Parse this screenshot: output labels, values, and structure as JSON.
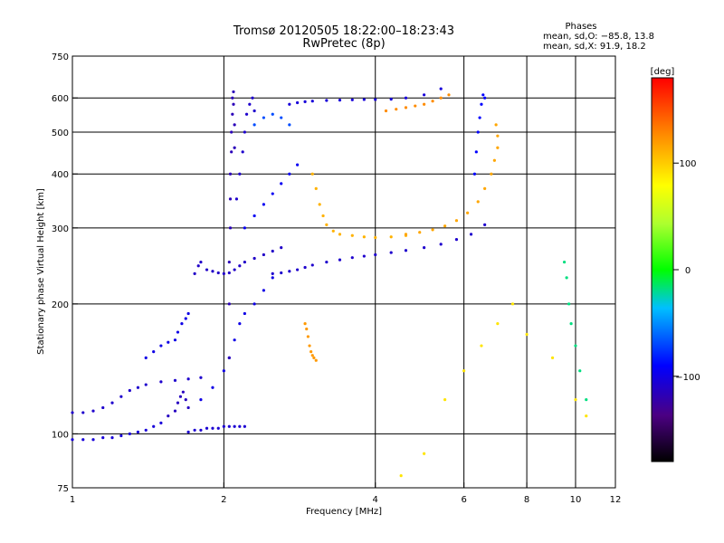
{
  "header": {
    "title_line1": "Tromsø 20120505 18:22:00–18:23:43",
    "title_line2": "RwPretec (8p)",
    "phases_title": "Phases",
    "phases_line1": "mean, sd,O: −85.8, 13.8",
    "phases_line2": "mean, sd,X:  91.9, 18.2"
  },
  "colorbar": {
    "label": "[deg]",
    "ticks": [
      {
        "value": 100,
        "label": "100"
      },
      {
        "value": 0,
        "label": "0"
      },
      {
        "value": -100,
        "label": "−100"
      }
    ],
    "range": [
      -180,
      180
    ]
  },
  "chart_data": {
    "type": "scatter",
    "title": "Tromsø 20120505 18:22:00–18:23:43",
    "subtitle": "RwPretec (8p)",
    "xlabel": "Frequency [MHz]",
    "ylabel": "Stationary phase Virtual Height [km]",
    "x_scale": "log",
    "y_scale": "log",
    "xlim": [
      1,
      12
    ],
    "ylim": [
      75,
      750
    ],
    "x_ticks": [
      {
        "value": 1,
        "label": "1"
      },
      {
        "value": 2,
        "label": "2"
      },
      {
        "value": 4,
        "label": "4"
      },
      {
        "value": 6,
        "label": "6"
      },
      {
        "value": 8,
        "label": "8"
      },
      {
        "value": 10,
        "label": "10"
      },
      {
        "value": 12,
        "label": "12"
      }
    ],
    "y_ticks": [
      {
        "value": 75,
        "label": "75"
      },
      {
        "value": 100,
        "label": "100"
      },
      {
        "value": 200,
        "label": "200"
      },
      {
        "value": 300,
        "label": "300"
      },
      {
        "value": 400,
        "label": "400"
      },
      {
        "value": 500,
        "label": "500"
      },
      {
        "value": 600,
        "label": "600"
      },
      {
        "value": 750,
        "label": "750"
      }
    ],
    "grid": true,
    "x_grid": [
      2,
      4,
      6,
      8,
      10
    ],
    "y_grid": [
      100,
      200,
      300,
      400,
      500,
      600
    ],
    "color_by": "phase_deg",
    "series": [
      {
        "phase": -110,
        "x": [
          1.0,
          1.05,
          1.1,
          1.15,
          1.2,
          1.25,
          1.3,
          1.35,
          1.4,
          1.5,
          1.6,
          1.7,
          1.8
        ],
        "y": [
          112,
          112,
          113,
          115,
          118,
          122,
          126,
          128,
          130,
          132,
          133,
          134,
          135
        ]
      },
      {
        "phase": -105,
        "x": [
          1.0,
          1.05,
          1.1,
          1.15,
          1.2,
          1.25,
          1.3,
          1.35,
          1.4,
          1.45,
          1.5
        ],
        "y": [
          97,
          97,
          97,
          98,
          98,
          99,
          100,
          101,
          102,
          104,
          106
        ]
      },
      {
        "phase": -100,
        "x": [
          1.4,
          1.45,
          1.5,
          1.55,
          1.6,
          1.62,
          1.65,
          1.68,
          1.7
        ],
        "y": [
          150,
          155,
          160,
          163,
          165,
          172,
          180,
          185,
          190
        ]
      },
      {
        "phase": -115,
        "x": [
          1.55,
          1.6,
          1.62,
          1.64,
          1.66,
          1.68,
          1.7
        ],
        "y": [
          110,
          113,
          118,
          122,
          125,
          120,
          115
        ]
      },
      {
        "phase": -108,
        "x": [
          1.7,
          1.75,
          1.8,
          1.85,
          1.9,
          1.95,
          2.0,
          2.05,
          2.1,
          2.15,
          2.2
        ],
        "y": [
          101,
          102,
          102,
          103,
          103,
          103,
          104,
          104,
          104,
          104,
          104
        ]
      },
      {
        "phase": -112,
        "x": [
          1.75,
          1.78,
          1.8,
          1.85,
          1.9,
          1.95,
          2.0,
          2.05,
          2.1,
          2.15,
          2.2,
          2.3,
          2.4,
          2.5,
          2.6
        ],
        "y": [
          235,
          245,
          250,
          240,
          238,
          236,
          235,
          236,
          240,
          245,
          250,
          255,
          260,
          265,
          270
        ]
      },
      {
        "phase": -100,
        "x": [
          1.8,
          1.9,
          2.0,
          2.05,
          2.1,
          2.15,
          2.2,
          2.3,
          2.4,
          2.5
        ],
        "y": [
          120,
          128,
          140,
          150,
          165,
          180,
          190,
          200,
          215,
          230
        ]
      },
      {
        "phase": -118,
        "x": [
          2.05,
          2.05,
          2.05,
          2.06,
          2.06,
          2.06,
          2.07,
          2.07,
          2.08,
          2.08,
          2.09,
          2.09,
          2.1,
          2.1
        ],
        "y": [
          150,
          200,
          250,
          300,
          350,
          400,
          450,
          500,
          550,
          600,
          620,
          580,
          520,
          460
        ]
      },
      {
        "phase": -110,
        "x": [
          2.12,
          2.15,
          2.18,
          2.2,
          2.22,
          2.25,
          2.28,
          2.3
        ],
        "y": [
          350,
          400,
          450,
          500,
          550,
          580,
          600,
          560
        ]
      },
      {
        "phase": -95,
        "x": [
          2.2,
          2.3,
          2.4,
          2.5,
          2.6,
          2.7,
          2.8
        ],
        "y": [
          300,
          320,
          340,
          360,
          380,
          400,
          420
        ]
      },
      {
        "phase": -70,
        "x": [
          2.3,
          2.4,
          2.5,
          2.6,
          2.7
        ],
        "y": [
          520,
          540,
          550,
          540,
          520
        ]
      },
      {
        "phase": -110,
        "x": [
          2.5,
          2.6,
          2.7,
          2.8,
          2.9,
          3.0,
          3.2,
          3.4,
          3.6,
          3.8,
          4.0,
          4.3,
          4.6,
          5.0,
          5.4,
          5.8,
          6.2,
          6.6
        ],
        "y": [
          235,
          236,
          238,
          240,
          243,
          246,
          250,
          253,
          256,
          258,
          260,
          263,
          266,
          270,
          275,
          282,
          290,
          305
        ]
      },
      {
        "phase": -105,
        "x": [
          2.7,
          2.8,
          2.9,
          3.0,
          3.2,
          3.4,
          3.6,
          3.8,
          4.0,
          4.3,
          4.6,
          5.0,
          5.4
        ],
        "y": [
          580,
          585,
          588,
          590,
          592,
          593,
          594,
          595,
          595,
          596,
          600,
          610,
          630
        ]
      },
      {
        "phase": 110,
        "x": [
          3.0,
          3.05,
          3.1,
          3.15,
          3.2,
          3.3,
          3.4,
          3.6,
          3.8,
          4.0,
          4.3,
          4.6
        ],
        "y": [
          400,
          370,
          340,
          320,
          305,
          295,
          290,
          288,
          286,
          285,
          286,
          288
        ]
      },
      {
        "phase": 115,
        "x": [
          4.6,
          4.9,
          5.2,
          5.5,
          5.8,
          6.1,
          6.4,
          6.6,
          6.8,
          6.9,
          7.0,
          7.0,
          6.95
        ],
        "y": [
          290,
          293,
          297,
          303,
          312,
          325,
          345,
          370,
          400,
          430,
          460,
          490,
          520
        ]
      },
      {
        "phase": 120,
        "x": [
          2.9,
          2.92,
          2.94,
          2.96,
          2.98,
          3.0,
          3.02,
          3.05
        ],
        "y": [
          180,
          175,
          168,
          160,
          155,
          152,
          150,
          148
        ]
      },
      {
        "phase": 125,
        "x": [
          4.2,
          4.4,
          4.6,
          4.8,
          5.0,
          5.2,
          5.4,
          5.6
        ],
        "y": [
          560,
          565,
          570,
          575,
          580,
          590,
          600,
          610
        ]
      },
      {
        "phase": 90,
        "x": [
          4.5,
          5.0,
          5.5,
          6.0,
          6.5,
          7.0,
          7.5,
          8.0,
          9.0,
          10.0,
          10.5
        ],
        "y": [
          80,
          90,
          120,
          140,
          160,
          180,
          200,
          170,
          150,
          120,
          110
        ]
      },
      {
        "phase": -90,
        "x": [
          6.3,
          6.35,
          6.4,
          6.45,
          6.5,
          6.55,
          6.6
        ],
        "y": [
          400,
          450,
          500,
          540,
          580,
          610,
          600
        ]
      },
      {
        "phase": -20,
        "x": [
          9.5,
          9.6,
          9.7,
          9.8,
          10.0,
          10.2,
          10.5
        ],
        "y": [
          250,
          230,
          200,
          180,
          160,
          140,
          120
        ]
      }
    ]
  }
}
